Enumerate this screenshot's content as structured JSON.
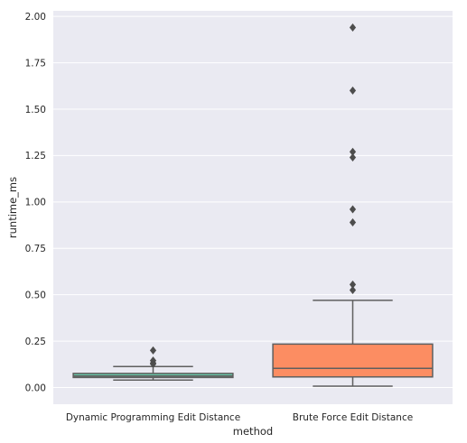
{
  "chart_data": {
    "type": "box",
    "title": "",
    "xlabel": "method",
    "ylabel": "runtime_ms",
    "ylim": [
      -0.09,
      2.03
    ],
    "yticks": [
      "0.00",
      "0.25",
      "0.50",
      "0.75",
      "1.00",
      "1.25",
      "1.50",
      "1.75",
      "2.00"
    ],
    "grid": true,
    "categories": [
      "Dynamic Programming Edit Distance",
      "Brute Force Edit Distance"
    ],
    "boxes": [
      {
        "name": "Dynamic Programming Edit Distance",
        "color": "#66c2a5",
        "whisker_low": 0.04,
        "q1": 0.054,
        "median": 0.062,
        "q3": 0.076,
        "whisker_high": 0.113,
        "outliers": [
          0.2,
          0.145,
          0.132,
          0.127
        ]
      },
      {
        "name": "Brute Force Edit Distance",
        "color": "#fc8d62",
        "whisker_low": 0.007,
        "q1": 0.057,
        "median": 0.103,
        "q3": 0.234,
        "whisker_high": 0.47,
        "outliers": [
          1.94,
          1.6,
          1.27,
          1.24,
          0.96,
          0.89,
          0.555,
          0.525
        ]
      }
    ]
  }
}
